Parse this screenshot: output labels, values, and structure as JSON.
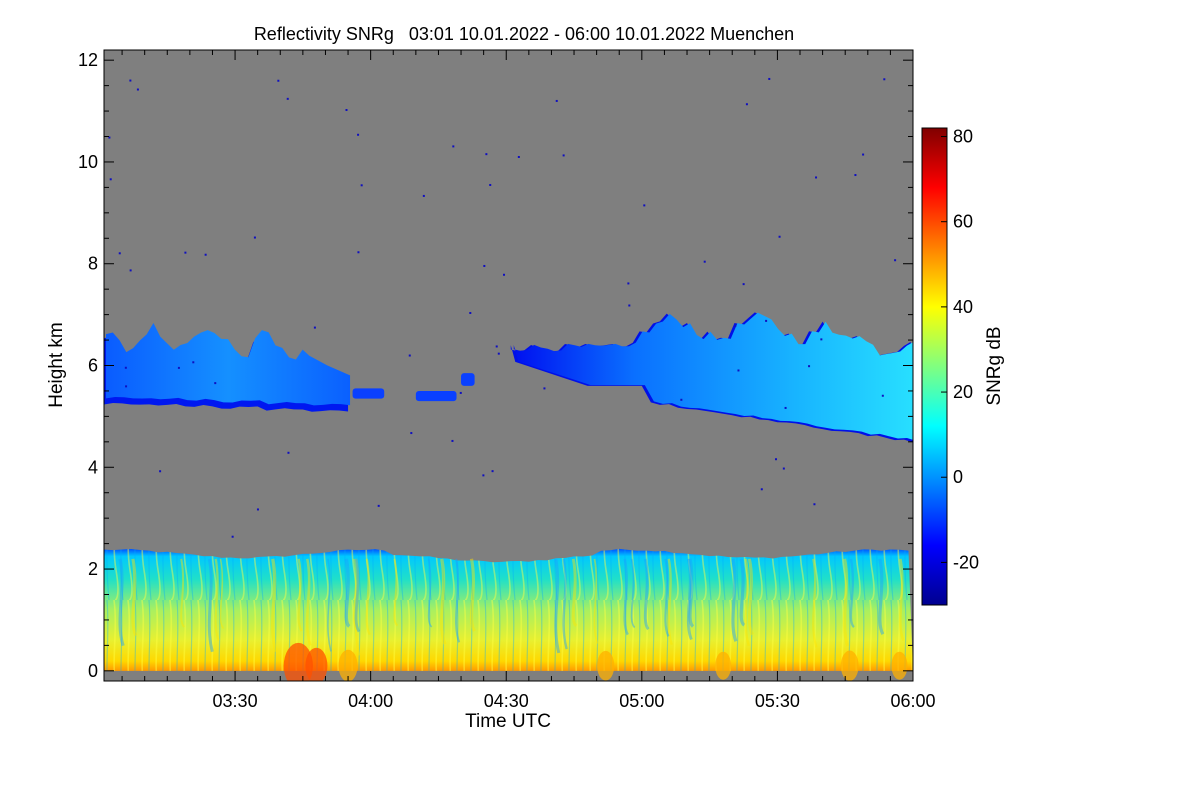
{
  "chart_data": {
    "type": "heatmap",
    "title": "Reflectivity SNRg   03:01 10.01.2022 - 06:00 10.01.2022 Muenchen",
    "xlabel": "Time UTC",
    "ylabel": "Height km",
    "xlim_minutes_utc": [
      181,
      360
    ],
    "ylim_km": [
      -0.2,
      12.2
    ],
    "x_ticks": [
      {
        "label": "03:30",
        "minutes": 210
      },
      {
        "label": "04:00",
        "minutes": 240
      },
      {
        "label": "04:30",
        "minutes": 270
      },
      {
        "label": "05:00",
        "minutes": 300
      },
      {
        "label": "05:30",
        "minutes": 330
      },
      {
        "label": "06:00",
        "minutes": 360
      }
    ],
    "y_ticks": [
      0,
      2,
      4,
      6,
      8,
      10,
      12
    ],
    "background_color": "#7f7f7f",
    "colorbar": {
      "label": "SNRg dB",
      "range": [
        -30,
        82
      ],
      "ticks": [
        -20,
        0,
        20,
        40,
        60,
        80
      ],
      "colors": [
        "#00008f",
        "#0000ff",
        "#0080ff",
        "#00ffff",
        "#80ff80",
        "#ffff00",
        "#ff8000",
        "#ff0000",
        "#800000"
      ]
    },
    "features": [
      {
        "name": "boundary-layer",
        "x_minutes": [
          181,
          360
        ],
        "height_top_km": 2.3,
        "height_bottom_km": 0.0,
        "snr_range_db": [
          5,
          60
        ]
      },
      {
        "name": "cloud-layer-early",
        "x_minutes": [
          181,
          235
        ],
        "height_top_km": 6.7,
        "height_bottom_km": 5.1,
        "snr_range_db": [
          -20,
          8
        ]
      },
      {
        "name": "cloud-layer-late",
        "x_minutes": [
          271,
          360
        ],
        "height_top_km": 6.9,
        "height_bottom_km": 4.5,
        "snr_range_db": [
          -20,
          15
        ]
      }
    ]
  }
}
